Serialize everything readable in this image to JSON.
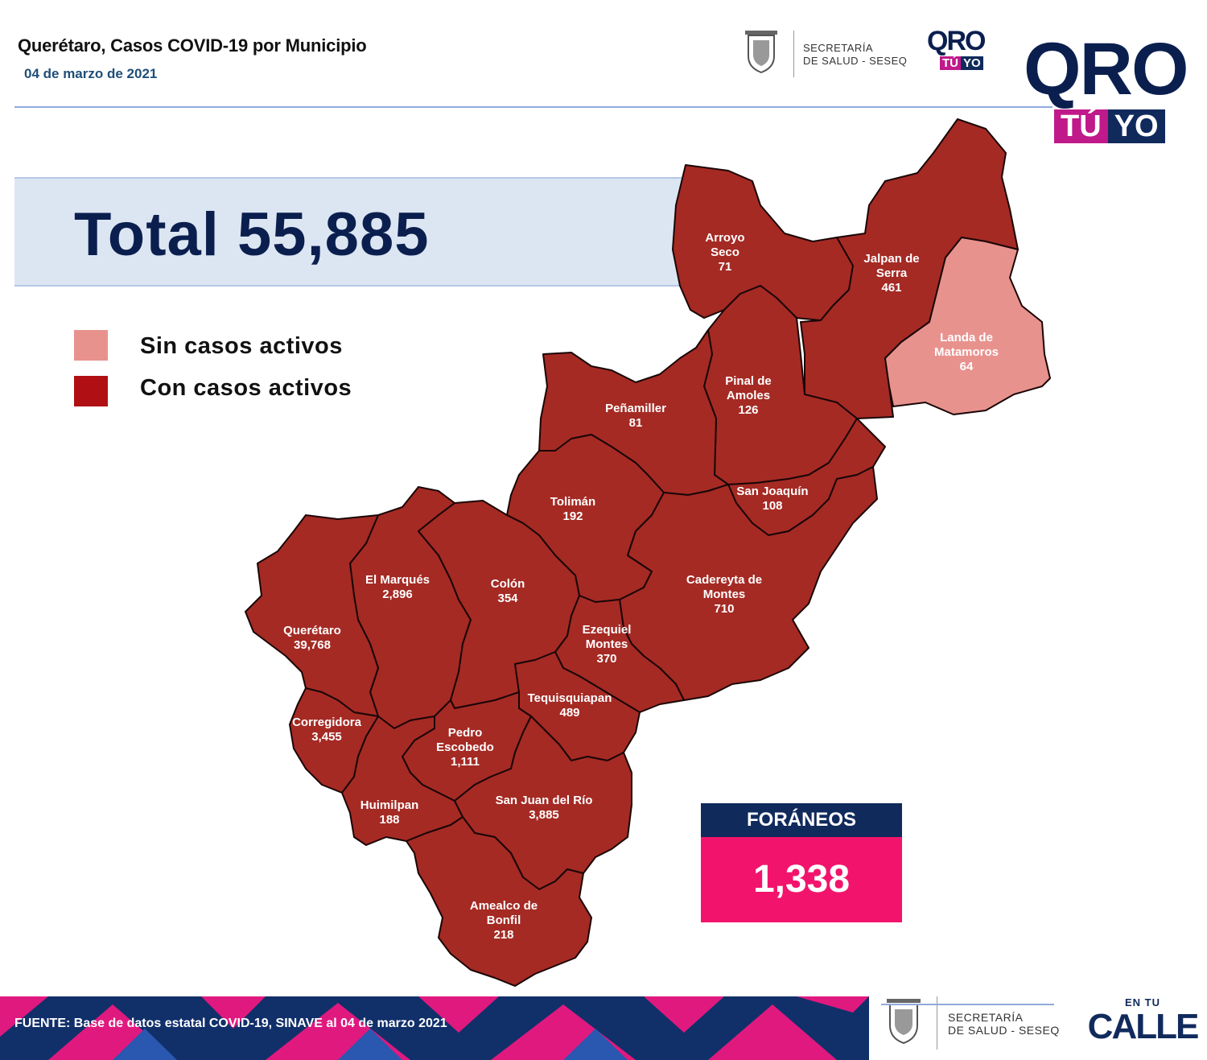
{
  "header": {
    "title": "Querétaro, Casos COVID-19 por Municipio",
    "date": "04 de marzo de 2021",
    "secretaria": [
      "SECRETARÍA",
      "DE SALUD - SESEQ"
    ],
    "logo_qro": "QRO",
    "logo_tuyo": [
      "TÚ",
      "YO"
    ]
  },
  "total": {
    "label": "Total",
    "value": "55,885"
  },
  "legend": [
    {
      "label": "Sin casos activos",
      "color": "#e8928e"
    },
    {
      "label": "Con casos activos",
      "color": "#b01014"
    }
  ],
  "colors": {
    "active": "#a52a24",
    "inactive": "#e8928e",
    "navy": "#102a5c",
    "pink": "#f2146c"
  },
  "municipios": [
    {
      "name": [
        "Arroyo",
        "Seco"
      ],
      "cases": "71",
      "active": true
    },
    {
      "name": [
        "Jalpan de",
        "Serra"
      ],
      "cases": "461",
      "active": true
    },
    {
      "name": [
        "Landa de",
        "Matamoros"
      ],
      "cases": "64",
      "active": false
    },
    {
      "name": [
        "Pinal de",
        "Amoles"
      ],
      "cases": "126",
      "active": true
    },
    {
      "name": [
        "Peñamiller"
      ],
      "cases": "81",
      "active": true
    },
    {
      "name": [
        "San Joaquín"
      ],
      "cases": "108",
      "active": true
    },
    {
      "name": [
        "Tolimán"
      ],
      "cases": "192",
      "active": true
    },
    {
      "name": [
        "Cadereyta de",
        "Montes"
      ],
      "cases": "710",
      "active": true
    },
    {
      "name": [
        "El  Marqués"
      ],
      "cases": "2,896",
      "active": true
    },
    {
      "name": [
        "Colón"
      ],
      "cases": "354",
      "active": true
    },
    {
      "name": [
        "Querétaro"
      ],
      "cases": "39,768",
      "active": true
    },
    {
      "name": [
        "Ezequiel",
        "Montes"
      ],
      "cases": "370",
      "active": true
    },
    {
      "name": [
        "Tequisquiapan"
      ],
      "cases": "489",
      "active": true
    },
    {
      "name": [
        "Corregidora"
      ],
      "cases": "3,455",
      "active": true
    },
    {
      "name": [
        "Pedro",
        "Escobedo"
      ],
      "cases": "1,111",
      "active": true
    },
    {
      "name": [
        "Huimilpan"
      ],
      "cases": "188",
      "active": true
    },
    {
      "name": [
        "San Juan del Río"
      ],
      "cases": "3,885",
      "active": true
    },
    {
      "name": [
        "Amealco de",
        "Bonfil"
      ],
      "cases": "218",
      "active": true
    }
  ],
  "foraneos": {
    "label": "FORÁNEOS",
    "value": "1,338"
  },
  "footer": {
    "source": "FUENTE:  Base de datos estatal COVID-19,  SINAVE  al 04 de marzo 2021",
    "secretaria": [
      "SECRETARÍA",
      "DE SALUD - SESEQ"
    ],
    "en_tu": "EN TU",
    "calle": "CALLE"
  }
}
